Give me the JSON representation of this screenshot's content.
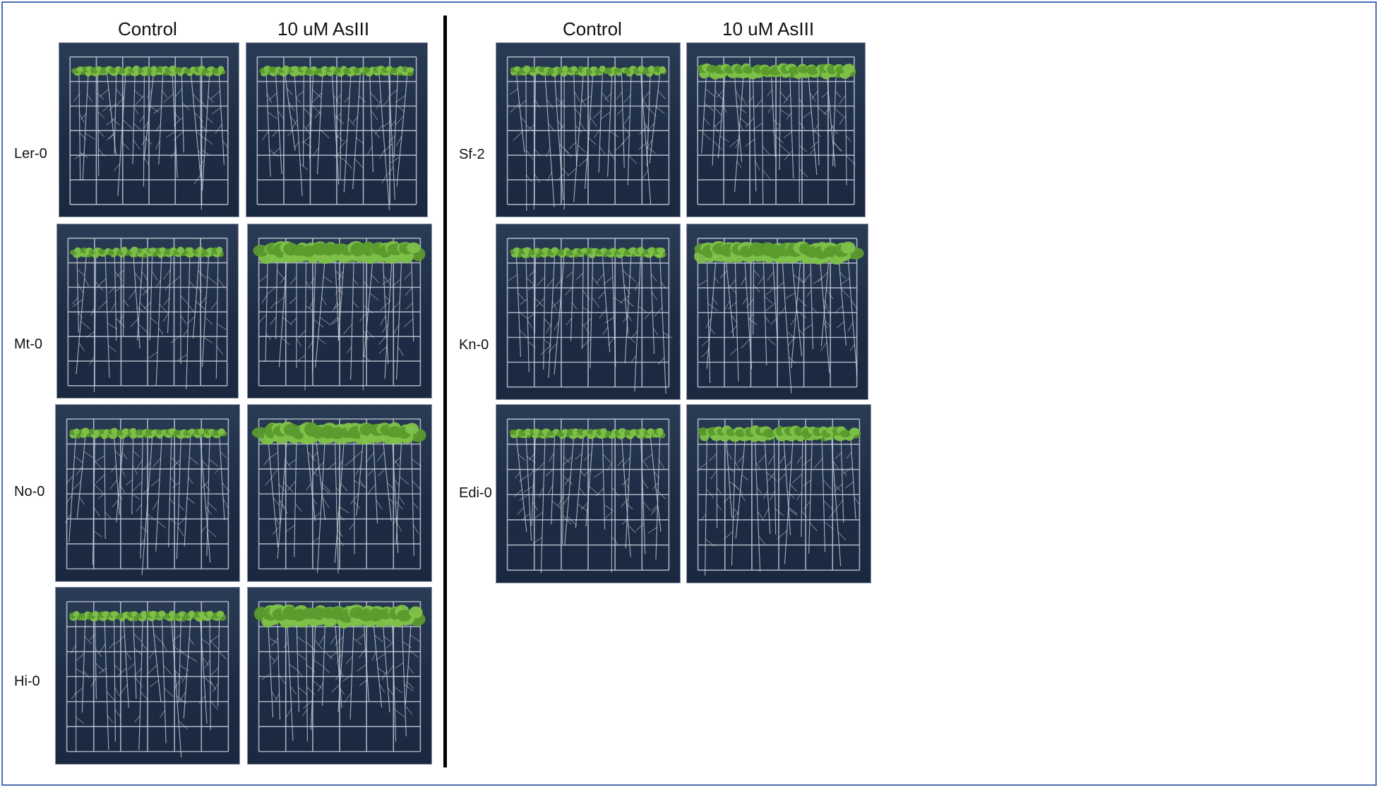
{
  "figure": {
    "left_panel": {
      "column_headers": [
        "Control",
        "10 uM AsIII"
      ],
      "rows": [
        {
          "label": "Ler-0",
          "seedling_size": [
            "small",
            "small"
          ]
        },
        {
          "label": "Mt-0",
          "seedling_size": [
            "small",
            "large"
          ]
        },
        {
          "label": "No-0",
          "seedling_size": [
            "small",
            "large"
          ]
        },
        {
          "label": "Hi-0",
          "seedling_size": [
            "small",
            "large"
          ]
        }
      ]
    },
    "right_panel": {
      "column_headers": [
        "Control",
        "10 uM AsIII"
      ],
      "rows": [
        {
          "label": "Sf-2",
          "seedling_size": [
            "small",
            "medium"
          ]
        },
        {
          "label": "Kn-0",
          "seedling_size": [
            "small",
            "large"
          ]
        },
        {
          "label": "Edi-0",
          "seedling_size": [
            "small",
            "medium"
          ]
        }
      ]
    }
  },
  "colors": {
    "plate_background": "#1d2c44",
    "grid_line": "#c9d1dd",
    "leaf": "#7fc24a",
    "leaf_dark": "#5a9a2e",
    "root": "#d9dee6",
    "frame_border": "#4a6fb0",
    "divider": "#000000"
  }
}
